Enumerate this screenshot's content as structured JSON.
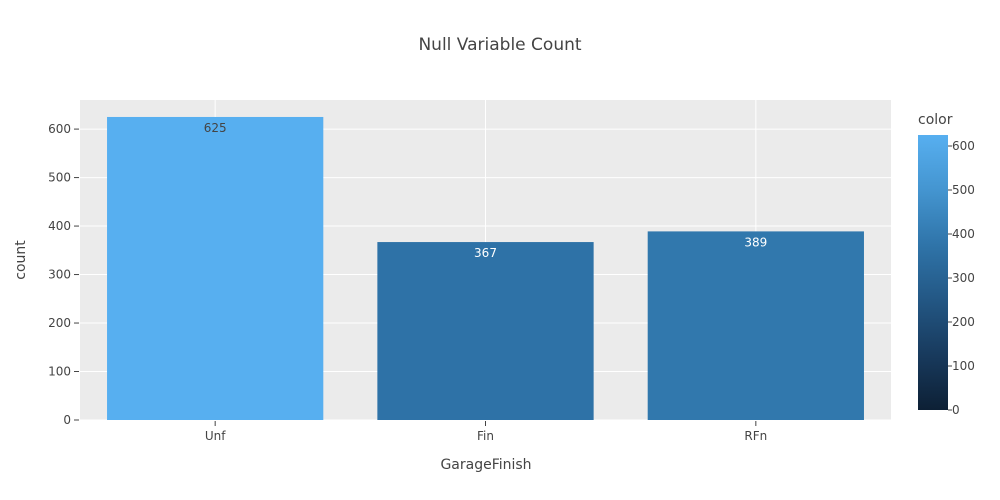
{
  "chart_data": {
    "type": "bar",
    "title": "Null Variable Count",
    "xlabel": "GarageFinish",
    "ylabel": "count",
    "categories": [
      "Unf",
      "Fin",
      "RFn"
    ],
    "values": [
      625,
      367,
      389
    ],
    "data_labels": [
      "625",
      "367",
      "389"
    ],
    "ylim": [
      0,
      660
    ],
    "yticks": [
      0,
      100,
      200,
      300,
      400,
      500,
      600
    ],
    "grid": true,
    "legend": {
      "type": "colorbar",
      "title": "color",
      "placement": "right",
      "range": [
        0,
        625
      ],
      "ticks": [
        0,
        100,
        200,
        300,
        400,
        500,
        600
      ],
      "colorscale": [
        "#0d2035",
        "#183a5d",
        "#235784",
        "#2f74a9",
        "#4495d0",
        "#57aff0"
      ]
    },
    "colors": {
      "plot_background": "#ebebeb",
      "grid": "#ffffff",
      "text": "#444444"
    }
  }
}
